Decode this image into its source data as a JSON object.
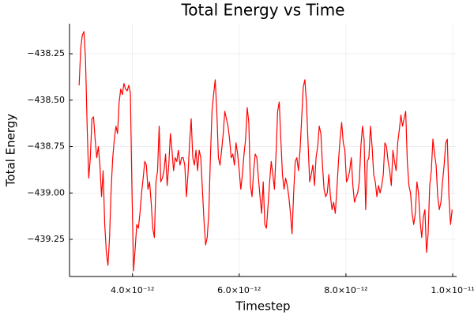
{
  "chart_data": {
    "type": "line",
    "title": "Total Energy vs Time",
    "xlabel": "Timestep",
    "ylabel": "Total Energy",
    "color": "#ff0000",
    "grid": true,
    "xlim": [
      2.82e-12,
      1.0074e-11
    ],
    "xticks": [
      {
        "value": 4e-12,
        "label": "4.0×10⁻¹²"
      },
      {
        "value": 6e-12,
        "label": "6.0×10⁻¹²"
      },
      {
        "value": 8e-12,
        "label": "8.0×10⁻¹²"
      },
      {
        "value": 1e-11,
        "label": "1.0×10⁻¹¹"
      }
    ],
    "ylim": [
      -439.45,
      -438.088
    ],
    "yticks": [
      {
        "value": -438.25,
        "label": "−438.25"
      },
      {
        "value": -438.5,
        "label": "−438.50"
      },
      {
        "value": -438.75,
        "label": "−438.75"
      },
      {
        "value": -439,
        "label": "−439.00"
      },
      {
        "value": -439.25,
        "label": "−439.25"
      }
    ],
    "x": [
      3e-12,
      3.03e-12,
      3.06e-12,
      3.09e-12,
      3.12e-12,
      3.15e-12,
      3.18e-12,
      3.21e-12,
      3.24e-12,
      3.27e-12,
      3.3e-12,
      3.33e-12,
      3.36e-12,
      3.39e-12,
      3.42e-12,
      3.45e-12,
      3.48e-12,
      3.51e-12,
      3.54e-12,
      3.57e-12,
      3.6e-12,
      3.63e-12,
      3.66e-12,
      3.69e-12,
      3.72e-12,
      3.75e-12,
      3.78e-12,
      3.81e-12,
      3.84e-12,
      3.87e-12,
      3.9e-12,
      3.93e-12,
      3.96e-12,
      3.99e-12,
      4.02e-12,
      4.05e-12,
      4.08e-12,
      4.11e-12,
      4.14e-12,
      4.17e-12,
      4.2e-12,
      4.23e-12,
      4.26e-12,
      4.29e-12,
      4.32e-12,
      4.35e-12,
      4.38e-12,
      4.41e-12,
      4.44e-12,
      4.47e-12,
      4.5e-12,
      4.53e-12,
      4.56e-12,
      4.59e-12,
      4.62e-12,
      4.65e-12,
      4.68e-12,
      4.71e-12,
      4.74e-12,
      4.77e-12,
      4.8e-12,
      4.83e-12,
      4.86e-12,
      4.89e-12,
      4.92e-12,
      4.95e-12,
      4.98e-12,
      5.01e-12,
      5.04e-12,
      5.07e-12,
      5.1e-12,
      5.13e-12,
      5.16e-12,
      5.19e-12,
      5.22e-12,
      5.25e-12,
      5.28e-12,
      5.31e-12,
      5.34e-12,
      5.37e-12,
      5.4e-12,
      5.43e-12,
      5.46e-12,
      5.49e-12,
      5.52e-12,
      5.55e-12,
      5.58e-12,
      5.61e-12,
      5.64e-12,
      5.67e-12,
      5.7e-12,
      5.73e-12,
      5.76e-12,
      5.79e-12,
      5.82e-12,
      5.85e-12,
      5.88e-12,
      5.91e-12,
      5.94e-12,
      5.97e-12,
      6e-12,
      6.03e-12,
      6.06e-12,
      6.09e-12,
      6.12e-12,
      6.15e-12,
      6.18e-12,
      6.21e-12,
      6.24e-12,
      6.27e-12,
      6.3e-12,
      6.33e-12,
      6.36e-12,
      6.39e-12,
      6.42e-12,
      6.45e-12,
      6.48e-12,
      6.51e-12,
      6.54e-12,
      6.57e-12,
      6.6e-12,
      6.63e-12,
      6.66e-12,
      6.69e-12,
      6.72e-12,
      6.75e-12,
      6.78e-12,
      6.81e-12,
      6.84e-12,
      6.87e-12,
      6.9e-12,
      6.93e-12,
      6.96e-12,
      6.99e-12,
      7.02e-12,
      7.05e-12,
      7.08e-12,
      7.11e-12,
      7.14e-12,
      7.17e-12,
      7.2e-12,
      7.23e-12,
      7.26e-12,
      7.29e-12,
      7.32e-12,
      7.35e-12,
      7.38e-12,
      7.41e-12,
      7.44e-12,
      7.47e-12,
      7.5e-12,
      7.53e-12,
      7.56e-12,
      7.59e-12,
      7.62e-12,
      7.65e-12,
      7.68e-12,
      7.71e-12,
      7.74e-12,
      7.77e-12,
      7.8e-12,
      7.83e-12,
      7.86e-12,
      7.89e-12,
      7.92e-12,
      7.95e-12,
      7.98e-12,
      8.01e-12,
      8.04e-12,
      8.07e-12,
      8.1e-12,
      8.13e-12,
      8.16e-12,
      8.19e-12,
      8.22e-12,
      8.25e-12,
      8.28e-12,
      8.31e-12,
      8.34e-12,
      8.37e-12,
      8.4e-12,
      8.43e-12,
      8.46e-12,
      8.49e-12,
      8.52e-12,
      8.55e-12,
      8.58e-12,
      8.61e-12,
      8.64e-12,
      8.67e-12,
      8.7e-12,
      8.73e-12,
      8.76e-12,
      8.79e-12,
      8.82e-12,
      8.85e-12,
      8.88e-12,
      8.91e-12,
      8.94e-12,
      8.97e-12,
      9e-12,
      9.03e-12,
      9.06e-12,
      9.09e-12,
      9.12e-12,
      9.15e-12,
      9.18e-12,
      9.21e-12,
      9.24e-12,
      9.27e-12,
      9.3e-12,
      9.33e-12,
      9.36e-12,
      9.39e-12,
      9.42e-12,
      9.45e-12,
      9.48e-12,
      9.51e-12,
      9.54e-12,
      9.57e-12,
      9.6e-12,
      9.63e-12,
      9.66e-12,
      9.69e-12,
      9.72e-12,
      9.75e-12,
      9.78e-12,
      9.81e-12,
      9.84e-12,
      9.87e-12,
      9.9e-12,
      9.93e-12,
      9.96e-12,
      9.99e-12
    ],
    "values": [
      -438.42,
      -438.22,
      -438.15,
      -438.13,
      -438.28,
      -438.64,
      -438.92,
      -438.81,
      -438.6,
      -438.59,
      -438.71,
      -438.81,
      -438.75,
      -438.85,
      -439.02,
      -438.88,
      -439.17,
      -439.32,
      -439.39,
      -439.24,
      -438.98,
      -438.81,
      -438.71,
      -438.64,
      -438.68,
      -438.51,
      -438.44,
      -438.47,
      -438.41,
      -438.44,
      -438.45,
      -438.42,
      -438.46,
      -438.98,
      -439.42,
      -439.3,
      -439.17,
      -439.19,
      -439.11,
      -439.0,
      -438.92,
      -438.83,
      -438.85,
      -438.98,
      -438.94,
      -439.05,
      -439.19,
      -439.24,
      -438.94,
      -438.88,
      -438.64,
      -438.94,
      -438.92,
      -438.88,
      -438.79,
      -438.96,
      -438.85,
      -438.68,
      -438.77,
      -438.88,
      -438.81,
      -438.83,
      -438.77,
      -438.85,
      -438.81,
      -438.81,
      -438.85,
      -439.02,
      -438.9,
      -438.73,
      -438.6,
      -438.81,
      -438.85,
      -438.77,
      -438.88,
      -438.77,
      -438.81,
      -438.98,
      -439.15,
      -439.28,
      -439.24,
      -439.11,
      -438.81,
      -438.56,
      -438.47,
      -438.39,
      -438.56,
      -438.81,
      -438.85,
      -438.77,
      -438.68,
      -438.56,
      -438.6,
      -438.64,
      -438.71,
      -438.81,
      -438.79,
      -438.85,
      -438.73,
      -438.79,
      -438.88,
      -438.98,
      -438.9,
      -438.79,
      -438.71,
      -438.54,
      -438.62,
      -438.96,
      -439.02,
      -438.88,
      -438.79,
      -438.81,
      -438.92,
      -439.02,
      -439.11,
      -438.94,
      -439.17,
      -439.19,
      -439.07,
      -438.94,
      -438.83,
      -438.9,
      -438.98,
      -438.79,
      -438.56,
      -438.51,
      -438.71,
      -438.9,
      -438.98,
      -438.92,
      -438.96,
      -439.02,
      -439.11,
      -439.22,
      -439.0,
      -438.83,
      -438.81,
      -438.88,
      -438.77,
      -438.6,
      -438.43,
      -438.39,
      -438.51,
      -438.73,
      -438.94,
      -438.9,
      -438.85,
      -438.96,
      -438.81,
      -438.75,
      -438.64,
      -438.68,
      -438.85,
      -438.98,
      -439.02,
      -439.0,
      -438.9,
      -439.02,
      -439.09,
      -439.05,
      -439.11,
      -438.98,
      -438.83,
      -438.71,
      -438.62,
      -438.73,
      -438.77,
      -438.94,
      -438.92,
      -438.88,
      -438.81,
      -438.96,
      -439.05,
      -439.02,
      -439.0,
      -438.94,
      -438.75,
      -438.64,
      -438.71,
      -439.09,
      -438.83,
      -438.81,
      -438.64,
      -438.75,
      -438.9,
      -438.94,
      -439.02,
      -438.96,
      -439.0,
      -438.96,
      -438.9,
      -438.73,
      -438.75,
      -438.83,
      -438.88,
      -438.96,
      -438.77,
      -438.83,
      -438.88,
      -438.73,
      -438.66,
      -438.58,
      -438.64,
      -438.6,
      -438.56,
      -438.83,
      -438.96,
      -439.0,
      -439.11,
      -439.17,
      -439.11,
      -438.94,
      -439.0,
      -439.15,
      -439.24,
      -439.13,
      -439.09,
      -439.32,
      -439.22,
      -438.96,
      -438.88,
      -438.71,
      -438.79,
      -438.85,
      -439.02,
      -439.09,
      -439.05,
      -438.94,
      -438.85,
      -438.73,
      -438.71,
      -439.02,
      -439.17,
      -439.09
    ]
  }
}
